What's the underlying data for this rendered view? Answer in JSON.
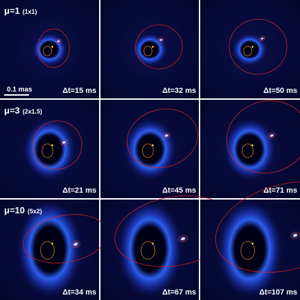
{
  "rows": [
    {
      "label": "μ=1",
      "sublabel": "(1x1)",
      "panels": [
        "Δt=15 ms",
        "Δt=32 ms",
        "Δt=50 ms"
      ]
    },
    {
      "label": "μ=3",
      "sublabel": "(2x1.5)",
      "panels": [
        "Δt=21 ms",
        "Δt=45 ms",
        "Δt=71 ms"
      ]
    },
    {
      "label": "μ=10",
      "sublabel": "(5x2)",
      "panels": [
        "Δt=34 ms",
        "Δt=67 ms",
        "Δt=107 ms"
      ]
    }
  ],
  "scale_bar": "0.1 mas"
}
